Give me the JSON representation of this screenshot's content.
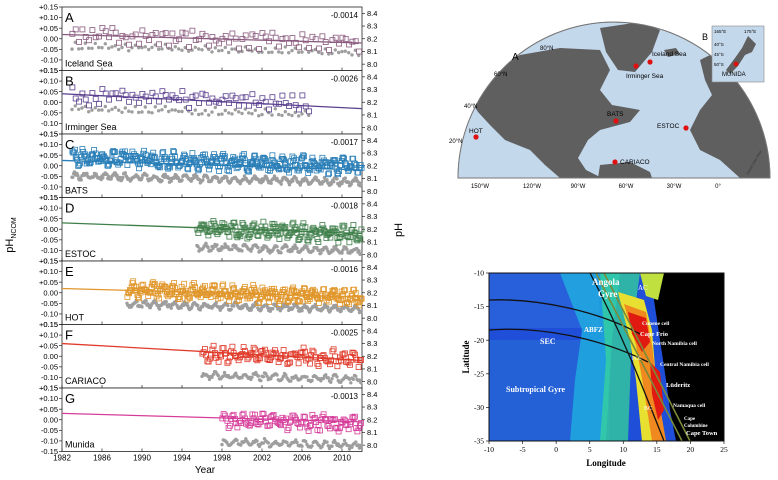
{
  "chart_data": [
    {
      "type": "scatter",
      "x_axis": {
        "label": "Year",
        "ticks": [
          1982,
          1986,
          1990,
          1994,
          1998,
          2002,
          2006,
          2010
        ],
        "range": [
          1982,
          2012
        ]
      },
      "left_axis": {
        "label_main": "pH",
        "label_sub": "NCOM",
        "ticks": [
          "+0.15",
          "+0.10",
          "+0.05",
          "0.00",
          "-0.05",
          "-0.10",
          "-0.15"
        ],
        "range": [
          -0.15,
          0.15
        ]
      },
      "right_axis": {
        "label": "pH",
        "ticks": [
          "8.4",
          "8.3",
          "8.2",
          "8.1",
          "8.0"
        ],
        "range": [
          7.95,
          8.45
        ]
      },
      "colors": {
        "gray_points": "#9e9e9e"
      },
      "panels": [
        {
          "letter": "A",
          "name": "Iceland Sea",
          "slope": "-0.0014",
          "color": "#8a5a7e",
          "start": 1983,
          "end": 2012,
          "anom_mean": 0.0,
          "ph_base": 8.12,
          "freq": 3,
          "trend_start": 0.02,
          "trend_end": -0.02
        },
        {
          "letter": "B",
          "name": "Irminger Sea",
          "slope": "-0.0026",
          "color": "#5a3f8e",
          "start": 1983,
          "end": 2007,
          "anom_mean": 0.01,
          "ph_base": 8.13,
          "freq": 3,
          "trend_start": 0.04,
          "trend_end": -0.03
        },
        {
          "letter": "C",
          "name": "BATS",
          "slope": "-0.0017",
          "color": "#2a7fb8",
          "start": 1983,
          "end": 2012,
          "anom_mean": 0.02,
          "ph_base": 8.1,
          "freq": 12,
          "trend_start": 0.025,
          "trend_end": -0.02
        },
        {
          "letter": "D",
          "name": "ESTOC",
          "slope": "-0.0018",
          "color": "#3f7f4a",
          "start": 1995.5,
          "end": 2012,
          "anom_mean": 0.0,
          "ph_base": 8.06,
          "freq": 10,
          "trend_start": 0.03,
          "trend_end": -0.02
        },
        {
          "letter": "E",
          "name": "HOT",
          "slope": "-0.0016",
          "color": "#e0962a",
          "start": 1988.5,
          "end": 2012,
          "anom_mean": 0.0,
          "ph_base": 8.1,
          "freq": 12,
          "trend_start": 0.02,
          "trend_end": -0.02
        },
        {
          "letter": "F",
          "name": "CARIACO",
          "slope": "-0.0025",
          "color": "#e03a2a",
          "start": 1996,
          "end": 2012,
          "anom_mean": 0.01,
          "ph_base": 8.05,
          "freq": 8,
          "trend_start": 0.06,
          "trend_end": -0.02
        },
        {
          "letter": "G",
          "name": "Munida",
          "slope": "-0.0013",
          "color": "#d63c9a",
          "start": 1998,
          "end": 2012,
          "anom_mean": 0.0,
          "ph_base": 8.03,
          "freq": 8,
          "trend_start": 0.03,
          "trend_end": -0.01
        }
      ]
    },
    {
      "type": "map",
      "letter": "A",
      "lat_labels": [
        "80°N",
        "60°N",
        "40°N",
        "20°N"
      ],
      "lon_labels": [
        "150°W",
        "120°W",
        "90°W",
        "60°W",
        "30°W",
        "0°"
      ],
      "stations": [
        "Iceland Sea",
        "Irminger Sea",
        "BATS",
        "ESTOC",
        "HOT",
        "CARIACO"
      ],
      "credit": "Ocean Data View",
      "inset": {
        "letter": "B",
        "lon_labels": [
          "165°E",
          "175°E"
        ],
        "lat_labels": [
          "40°S",
          "45°S",
          "50°S"
        ],
        "station": "MUNIDA"
      }
    },
    {
      "type": "heatmap",
      "xlabel": "Longitude",
      "ylabel": "Latitude",
      "x_ticks": [
        "-10",
        "-5",
        "0",
        "5",
        "10",
        "15",
        "20",
        "25"
      ],
      "y_ticks": [
        "-10",
        "-15",
        "-20",
        "-25",
        "-30",
        "-35"
      ],
      "region_labels": [
        "Angola",
        "Gyre",
        "AC",
        "Cunene cell",
        "Cape Frio",
        "North Namibia cell",
        "ABFZ",
        "SEC",
        "PCC",
        "Central Namibia cell",
        "Lüderitz",
        "Subtropical Gyre",
        "BC",
        "Namaqua cell",
        "Cape",
        "Columbine",
        "Cape Town"
      ]
    }
  ]
}
